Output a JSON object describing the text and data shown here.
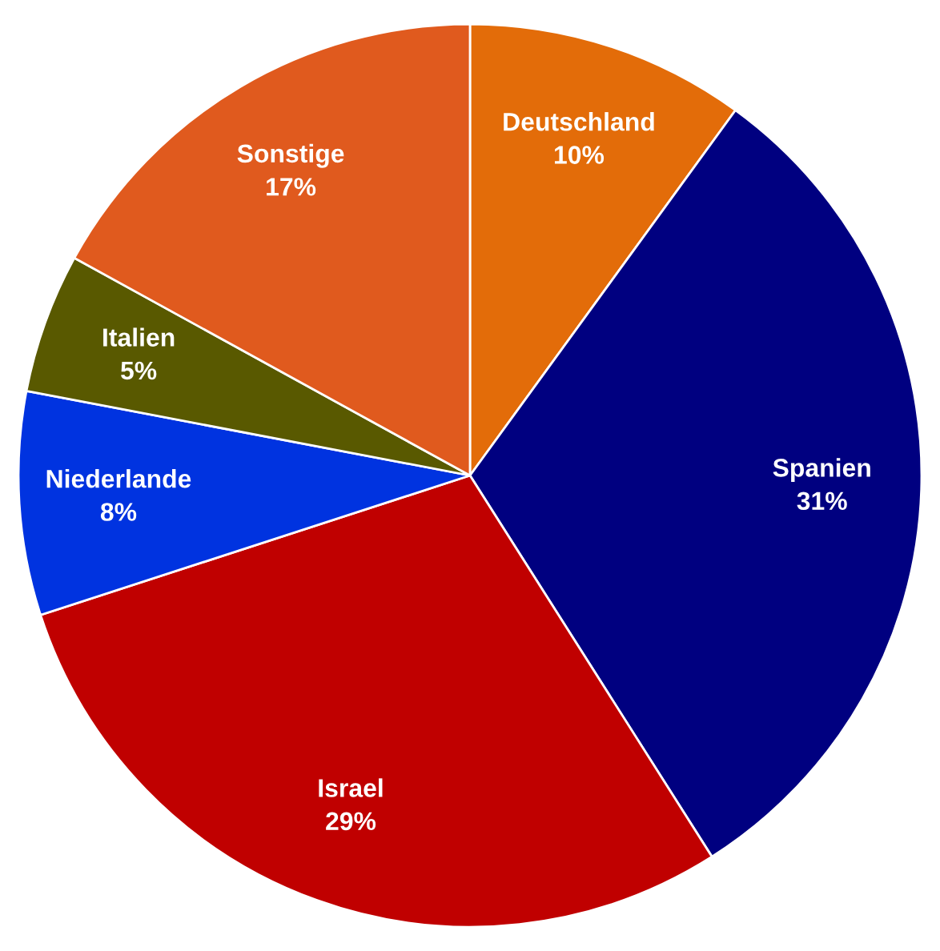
{
  "chart_data": {
    "type": "pie",
    "categories": [
      "Deutschland",
      "Spanien",
      "Israel",
      "Niederlande",
      "Italien",
      "Sonstige"
    ],
    "values": [
      10,
      31,
      29,
      8,
      5,
      17
    ],
    "colors": [
      "#e36c09",
      "#000080",
      "#c00000",
      "#0033e0",
      "#595900",
      "#e05a1e"
    ],
    "value_labels": [
      "10%",
      "31%",
      "29%",
      "8%",
      "5%",
      "17%"
    ]
  }
}
